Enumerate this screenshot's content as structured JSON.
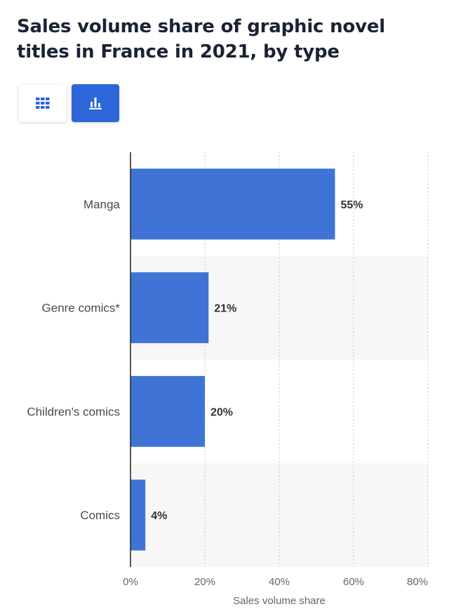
{
  "header": {
    "title": "Sales volume share of graphic novel titles in France in 2021, by type"
  },
  "toolbar": {
    "table_view_icon": "grid-icon",
    "chart_view_icon": "bar-chart-icon",
    "accent_color": "#2c66d9"
  },
  "chart_data": {
    "type": "bar",
    "orientation": "horizontal",
    "title": "Sales volume share of graphic novel titles in France in 2021, by type",
    "categories": [
      "Manga",
      "Genre comics*",
      "Children's comics",
      "Comics"
    ],
    "values": [
      55,
      21,
      20,
      4
    ],
    "value_labels": [
      "55%",
      "21%",
      "20%",
      "4%"
    ],
    "xlabel": "Sales volume share",
    "ylabel": "",
    "xlim": [
      0,
      80
    ],
    "xticks": [
      0,
      20,
      40,
      60,
      80
    ],
    "xtick_labels": [
      "0%",
      "20%",
      "40%",
      "60%",
      "80%"
    ],
    "grid": "vertical dotted",
    "bar_color": "#3f74d6",
    "band_color": "#f7f7f7"
  }
}
